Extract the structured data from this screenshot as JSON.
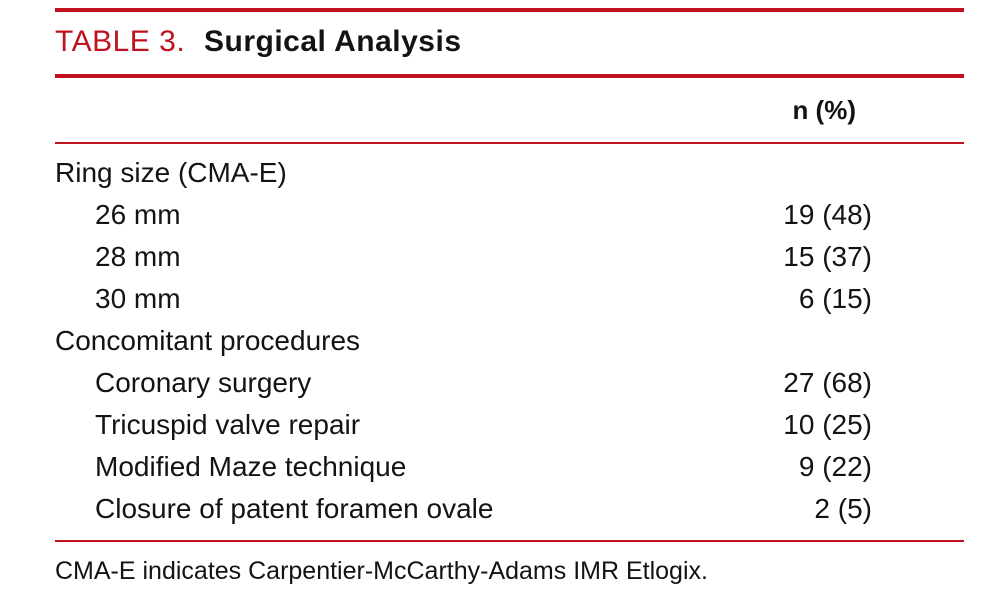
{
  "title": {
    "label": "TABLE 3.",
    "name": "Surgical Analysis"
  },
  "colors": {
    "accent_red": "#bf1120",
    "text": "#131313",
    "background": "#ffffff"
  },
  "table": {
    "value_header": "n (%)",
    "rows": [
      {
        "label": "Ring size (CMA-E)",
        "value": "",
        "indent": 0
      },
      {
        "label": "26 mm",
        "value": "19 (48)",
        "indent": 1
      },
      {
        "label": "28 mm",
        "value": "15 (37)",
        "indent": 1
      },
      {
        "label": "30 mm",
        "value": "6 (15)",
        "indent": 1
      },
      {
        "label": "Concomitant procedures",
        "value": "",
        "indent": 0
      },
      {
        "label": "Coronary surgery",
        "value": "27 (68)",
        "indent": 1
      },
      {
        "label": "Tricuspid valve repair",
        "value": "10 (25)",
        "indent": 1
      },
      {
        "label": "Modified Maze technique",
        "value": "9 (22)",
        "indent": 1
      },
      {
        "label": "Closure of patent foramen ovale",
        "value": "2 (5)",
        "indent": 1
      }
    ]
  },
  "footnote": "CMA-E indicates Carpentier-McCarthy-Adams IMR Etlogix."
}
